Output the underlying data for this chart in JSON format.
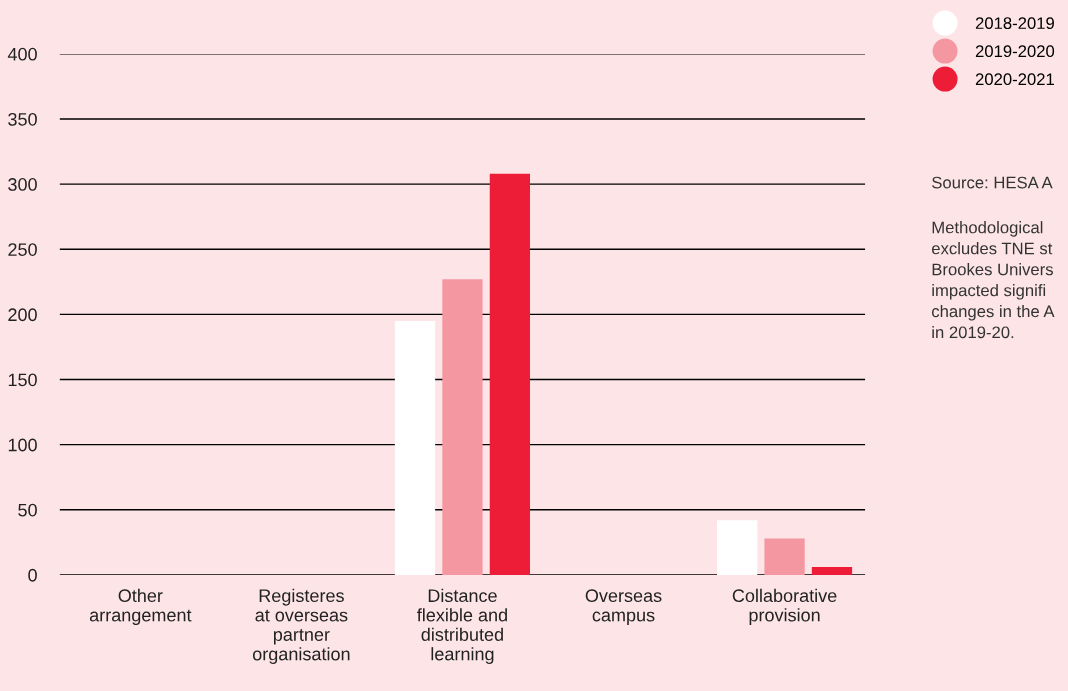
{
  "chart_data": {
    "type": "bar",
    "categories": [
      "Other\narrangement",
      "Registeres\nat overseas\npartner\norganisation",
      "Distance\nflexible and\ndistributed\nlearning",
      "Overseas\ncampus",
      "Collaborative\nprovision"
    ],
    "series": [
      {
        "name": "2018-2019",
        "color": "#ffffff",
        "values": [
          0,
          0,
          195,
          0,
          42
        ]
      },
      {
        "name": "2019-2020",
        "color": "#f497a0",
        "values": [
          0,
          0,
          227,
          0,
          28
        ]
      },
      {
        "name": "2020-2021",
        "color": "#ed1c37",
        "values": [
          0,
          0,
          308,
          0,
          6
        ]
      }
    ],
    "ylim": [
      0,
      400
    ],
    "yticks": [
      0,
      50,
      100,
      150,
      200,
      250,
      300,
      350,
      400
    ],
    "grid": "y",
    "legend": "top right",
    "annotations": [
      "Source: HESA A",
      "Methodological\nexcludes TNE st\nBrookes Univers\nimpacted signifi\nchanges in the A\nin 2019-20."
    ]
  }
}
